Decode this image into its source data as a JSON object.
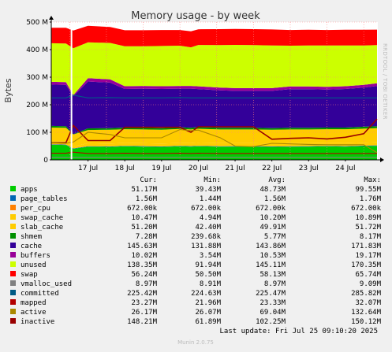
{
  "chart_data": {
    "type": "area",
    "title": "Memory usage - by week",
    "ylabel": "Bytes",
    "side_label": "RRDTOOL / TOBI OETIKER",
    "xlim": [
      "2025-07-16T12:00",
      "2025-07-25T09:10"
    ],
    "ylim": [
      0,
      500
    ],
    "y_unit": "M",
    "y_ticks": [
      0,
      100,
      200,
      300,
      400,
      500
    ],
    "y_tick_labels": [
      "0",
      "100 M",
      "200 M",
      "300 M",
      "400 M",
      "500 M"
    ],
    "x_tick_labels": [
      "17 Jul",
      "18 Jul",
      "19 Jul",
      "20 Jul",
      "21 Jul",
      "22 Jul",
      "23 Jul",
      "24 Jul"
    ],
    "grid": true,
    "legend_placement": "bottom",
    "columns": [
      "Cur:",
      "Min:",
      "Avg:",
      "Max:"
    ],
    "legend": [
      {
        "name": "apps",
        "color": "#00cc00",
        "cur": "51.17M",
        "min": "39.43M",
        "avg": "48.73M",
        "max": "99.55M"
      },
      {
        "name": "page_tables",
        "color": "#0066b3",
        "cur": "1.56M",
        "min": "1.44M",
        "avg": "1.56M",
        "max": "1.76M"
      },
      {
        "name": "per_cpu",
        "color": "#ff8000",
        "cur": "672.00k",
        "min": "672.00k",
        "avg": "672.00k",
        "max": "672.00k"
      },
      {
        "name": "swap_cache",
        "color": "#ffcc00",
        "cur": "10.47M",
        "min": "4.94M",
        "avg": "10.20M",
        "max": "10.89M"
      },
      {
        "name": "slab_cache",
        "color": "#ffcc00",
        "cur": "51.20M",
        "min": "42.40M",
        "avg": "49.91M",
        "max": "51.72M"
      },
      {
        "name": "shmem",
        "color": "#008f00",
        "cur": "7.28M",
        "min": "239.68k",
        "avg": "5.77M",
        "max": "8.17M"
      },
      {
        "name": "cache",
        "color": "#330099",
        "cur": "145.63M",
        "min": "131.88M",
        "avg": "143.86M",
        "max": "171.83M"
      },
      {
        "name": "buffers",
        "color": "#990099",
        "cur": "10.02M",
        "min": "3.54M",
        "avg": "10.53M",
        "max": "19.17M"
      },
      {
        "name": "unused",
        "color": "#ccff00",
        "cur": "138.35M",
        "min": "91.94M",
        "avg": "145.11M",
        "max": "170.35M"
      },
      {
        "name": "swap",
        "color": "#ff0000",
        "cur": "56.24M",
        "min": "50.50M",
        "avg": "58.13M",
        "max": "65.74M"
      },
      {
        "name": "vmalloc_used",
        "color": "#808080",
        "cur": "8.97M",
        "min": "8.91M",
        "avg": "8.97M",
        "max": "9.09M"
      },
      {
        "name": "committed",
        "color": "#005b85",
        "cur": "225.42M",
        "min": "224.63M",
        "avg": "225.47M",
        "max": "285.82M"
      },
      {
        "name": "mapped",
        "color": "#b30000",
        "cur": "23.27M",
        "min": "21.96M",
        "avg": "23.33M",
        "max": "32.07M"
      },
      {
        "name": "active",
        "color": "#aa8800",
        "cur": "26.17M",
        "min": "26.07M",
        "avg": "69.04M",
        "max": "132.64M"
      },
      {
        "name": "inactive",
        "color": "#990000",
        "cur": "148.21M",
        "min": "61.89M",
        "avg": "102.25M",
        "max": "150.12M"
      }
    ],
    "stack_order": [
      "apps",
      "page_tables",
      "per_cpu",
      "swap_cache",
      "slab_cache",
      "shmem",
      "cache",
      "buffers",
      "unused",
      "swap"
    ],
    "stack_series": {
      "days": [
        0,
        0.4,
        0.6,
        1.0,
        1.6,
        2.0,
        2.5,
        3.0,
        3.5,
        3.8,
        4.0,
        4.6,
        5.0,
        5.5,
        6.0,
        6.5,
        7.0,
        7.5,
        8.0,
        8.5,
        8.86
      ],
      "apps": [
        55,
        54,
        40,
        48,
        47,
        49,
        48,
        47,
        49,
        48,
        49,
        48,
        48,
        48,
        47,
        48,
        48,
        49,
        48,
        50,
        51
      ],
      "page_tables": [
        1.5,
        1.5,
        1.5,
        1.5,
        1.6,
        1.5,
        1.6,
        1.5,
        1.6,
        1.6,
        1.6,
        1.5,
        1.6,
        1.6,
        1.6,
        1.5,
        1.6,
        1.6,
        1.6,
        1.6,
        1.56
      ],
      "per_cpu": [
        0.67,
        0.67,
        0.67,
        0.67,
        0.67,
        0.67,
        0.67,
        0.67,
        0.67,
        0.67,
        0.67,
        0.67,
        0.67,
        0.67,
        0.67,
        0.67,
        0.67,
        0.67,
        0.67,
        0.67,
        0.67
      ],
      "swap_cache": [
        10,
        10,
        6,
        10,
        10,
        10,
        10,
        10,
        10,
        10,
        10.5,
        10,
        10,
        10,
        10,
        10,
        10,
        10,
        10,
        10,
        10.5
      ],
      "slab_cache": [
        50,
        50,
        44,
        48,
        50,
        50,
        50,
        50,
        51,
        50,
        51,
        50,
        50,
        50,
        50,
        50,
        50,
        50,
        51,
        51,
        51.2
      ],
      "shmem": [
        6,
        6,
        1,
        6,
        6,
        6,
        6,
        6,
        6,
        6,
        6,
        6,
        6,
        6,
        6,
        6,
        6,
        6,
        6,
        7,
        7.3
      ],
      "cache": [
        150,
        150,
        138,
        170,
        165,
        140,
        142,
        142,
        140,
        142,
        138,
        136,
        134,
        134,
        135,
        140,
        140,
        138,
        140,
        142,
        145.6
      ],
      "buffers": [
        10,
        10,
        4,
        12,
        12,
        10,
        10,
        10,
        10,
        10,
        10,
        10,
        10,
        10,
        10,
        10,
        10,
        10,
        10,
        10,
        10
      ],
      "unused": [
        140,
        140,
        170,
        130,
        132,
        145,
        144,
        146,
        146,
        140,
        150,
        154,
        157,
        156,
        155,
        148,
        149,
        150,
        148,
        143,
        138.4
      ],
      "swap": [
        56,
        57,
        64,
        60,
        58,
        58,
        58,
        58,
        57,
        58,
        57,
        58,
        58,
        58,
        58,
        57,
        57,
        56,
        57,
        57,
        56.2
      ]
    },
    "line_series": {
      "inactive": [
        62,
        62,
        125,
        70,
        70,
        118,
        118,
        118,
        118,
        100,
        120,
        120,
        120,
        120,
        75,
        78,
        80,
        76,
        82,
        95,
        148
      ],
      "active": [
        62,
        60,
        65,
        100,
        92,
        80,
        80,
        80,
        110,
        106,
        108,
        80,
        50,
        48,
        60,
        58,
        56,
        55,
        55,
        55,
        26
      ],
      "mapped": [
        24,
        24,
        28,
        23,
        23,
        24,
        23,
        23,
        24,
        23,
        24,
        23,
        23,
        23,
        23,
        23,
        23,
        23,
        23,
        23,
        23
      ],
      "vmalloc_used": [
        9,
        9,
        9,
        9,
        9,
        9,
        9,
        9,
        9,
        9,
        9,
        9,
        9,
        9,
        9,
        9,
        9,
        9,
        9,
        9,
        9
      ],
      "committed": [
        225,
        225,
        235,
        225,
        226,
        225,
        225,
        225,
        226,
        225,
        225,
        225,
        225,
        225,
        225,
        225,
        225,
        225,
        225,
        225,
        225
      ]
    },
    "marker_day": 0.55
  },
  "footer": {
    "last_update": "Last update: Fri Jul 25 09:10:20 2025",
    "munin_version": "Munin 2.0.75"
  }
}
